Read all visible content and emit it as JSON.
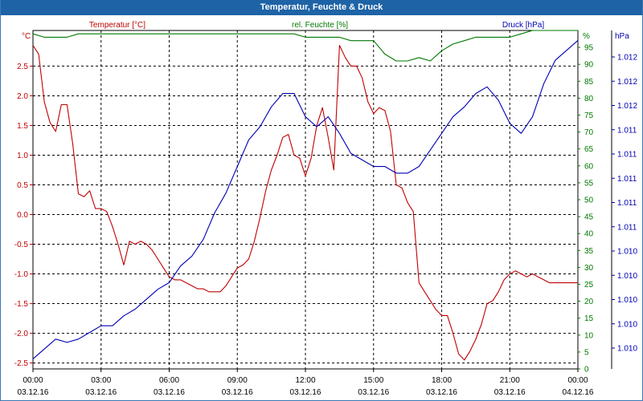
{
  "window": {
    "title": "Temperatur, Feuchte & Druck"
  },
  "colors": {
    "temperature": "#c00000",
    "humidity": "#007800",
    "pressure": "#0000b4",
    "grid": "#000000",
    "titlebar": "#1e63a6"
  },
  "chart_data": {
    "type": "line",
    "title": "Temperatur, Feuchte & Druck",
    "grid": true,
    "legend": "top",
    "x_labels": [
      {
        "time": "00:00",
        "date": "03.12.16",
        "hour": 0
      },
      {
        "time": "03:00",
        "date": "03.12.16",
        "hour": 3
      },
      {
        "time": "06:00",
        "date": "03.12.16",
        "hour": 6
      },
      {
        "time": "09:00",
        "date": "03.12.16",
        "hour": 9
      },
      {
        "time": "12:00",
        "date": "03.12.16",
        "hour": 12
      },
      {
        "time": "15:00",
        "date": "03.12.16",
        "hour": 15
      },
      {
        "time": "18:00",
        "date": "03.12.16",
        "hour": 18
      },
      {
        "time": "21:00",
        "date": "03.12.16",
        "hour": 21
      },
      {
        "time": "00:00",
        "date": "04.12.16",
        "hour": 24
      }
    ],
    "axes": {
      "temperature": {
        "label": "Temperatur [°C]",
        "unit": "°C",
        "ylim": [
          -2.6,
          3.1
        ],
        "ticks": [
          "2.5",
          "2.0",
          "1.5",
          "1.0",
          "0.5",
          "0.0",
          "-0.5",
          "-1.0",
          "-1.5",
          "-2.0",
          "-2.5"
        ]
      },
      "humidity": {
        "label": "rel. Feuchte [%]",
        "unit": "%",
        "ylim": [
          0,
          100
        ],
        "ticks": [
          "95",
          "90",
          "85",
          "80",
          "75",
          "70",
          "65",
          "60",
          "55",
          "50",
          "45",
          "40",
          "35",
          "30",
          "25",
          "20",
          "15",
          "10",
          "5",
          "0"
        ]
      },
      "pressure": {
        "label": "Druck [hPa]",
        "unit": "hPa",
        "ticks": [
          "1.012",
          "1.012",
          "1.012",
          "1.011",
          "1.011",
          "1.011",
          "1.011",
          "1.011",
          "1.010",
          "1.010",
          "1.010",
          "1.010",
          "1.010"
        ]
      }
    },
    "series": [
      {
        "name": "Temperatur [°C]",
        "axis": "temperature",
        "x": [
          0.0,
          0.25,
          0.5,
          0.75,
          1.0,
          1.25,
          1.5,
          1.75,
          2.0,
          2.25,
          2.5,
          2.75,
          3.0,
          3.25,
          3.5,
          3.75,
          4.0,
          4.25,
          4.5,
          4.75,
          5.0,
          5.25,
          5.5,
          5.75,
          6.0,
          6.25,
          6.5,
          6.75,
          7.0,
          7.25,
          7.5,
          7.75,
          8.0,
          8.25,
          8.5,
          8.75,
          9.0,
          9.25,
          9.5,
          9.75,
          10.0,
          10.25,
          10.5,
          10.75,
          11.0,
          11.25,
          11.5,
          11.75,
          12.0,
          12.25,
          12.5,
          12.75,
          13.0,
          13.25,
          13.5,
          13.75,
          14.0,
          14.25,
          14.5,
          14.75,
          15.0,
          15.25,
          15.5,
          15.75,
          16.0,
          16.25,
          16.5,
          16.75,
          17.0,
          17.25,
          17.5,
          17.75,
          18.0,
          18.25,
          18.5,
          18.75,
          19.0,
          19.25,
          19.5,
          19.75,
          20.0,
          20.25,
          20.5,
          20.75,
          21.0,
          21.25,
          21.5,
          21.75,
          22.0,
          22.25,
          22.5,
          22.75,
          23.0,
          23.25,
          23.5,
          23.75,
          24.0
        ],
        "values": [
          2.85,
          2.7,
          1.9,
          1.55,
          1.4,
          1.85,
          1.85,
          1.2,
          0.35,
          0.3,
          0.4,
          0.1,
          0.1,
          0.05,
          -0.2,
          -0.5,
          -0.85,
          -0.45,
          -0.5,
          -0.45,
          -0.5,
          -0.6,
          -0.75,
          -0.9,
          -1.05,
          -1.1,
          -1.1,
          -1.15,
          -1.2,
          -1.25,
          -1.25,
          -1.3,
          -1.3,
          -1.3,
          -1.2,
          -1.05,
          -0.9,
          -0.85,
          -0.75,
          -0.45,
          -0.05,
          0.4,
          0.75,
          1.0,
          1.3,
          1.35,
          1.0,
          0.95,
          0.65,
          0.95,
          1.5,
          1.8,
          1.3,
          0.75,
          2.85,
          2.65,
          2.5,
          2.5,
          2.3,
          1.9,
          1.7,
          1.8,
          1.75,
          1.4,
          0.5,
          0.45,
          0.2,
          0.05,
          -1.15,
          -1.3,
          -1.45,
          -1.6,
          -1.7,
          -1.7,
          -2.0,
          -2.35,
          -2.45,
          -2.3,
          -2.1,
          -1.85,
          -1.5,
          -1.45,
          -1.3,
          -1.1,
          -1.0,
          -0.95,
          -1.0,
          -1.05,
          -1.0,
          -1.05,
          -1.1,
          -1.15,
          -1.15,
          -1.15,
          -1.15,
          -1.15,
          -1.15
        ]
      },
      {
        "name": "rel. Feuchte [%]",
        "axis": "humidity",
        "x": [
          0.0,
          0.5,
          1.0,
          1.5,
          2.0,
          2.5,
          3.0,
          3.5,
          4.0,
          4.5,
          5.0,
          5.5,
          6.0,
          6.5,
          7.0,
          7.5,
          8.0,
          8.5,
          9.0,
          9.5,
          10.0,
          10.5,
          11.0,
          11.5,
          12.0,
          12.5,
          13.0,
          13.5,
          14.0,
          14.5,
          15.0,
          15.5,
          16.0,
          16.5,
          17.0,
          17.5,
          18.0,
          18.5,
          19.0,
          19.5,
          20.0,
          20.5,
          21.0,
          21.5,
          22.0,
          22.5,
          23.0,
          23.5,
          24.0
        ],
        "values": [
          99,
          98,
          98,
          98,
          99,
          99,
          99,
          99,
          99,
          99,
          99,
          99,
          99,
          99,
          99,
          99,
          99,
          99,
          99,
          99,
          99,
          99,
          99,
          99,
          98,
          98,
          98,
          98,
          97,
          97,
          97,
          93,
          91,
          91,
          92,
          91,
          94,
          96,
          97,
          98,
          98,
          98,
          98,
          99,
          100,
          100,
          100,
          100,
          100
        ]
      },
      {
        "name": "Druck [hPa]",
        "axis": "pressure",
        "x": [
          0.0,
          0.5,
          1.0,
          1.5,
          2.0,
          2.5,
          3.0,
          3.5,
          4.0,
          4.5,
          5.0,
          5.5,
          6.0,
          6.5,
          7.0,
          7.5,
          8.0,
          8.5,
          9.0,
          9.5,
          10.0,
          10.5,
          11.0,
          11.5,
          12.0,
          12.5,
          13.0,
          13.5,
          14.0,
          14.5,
          15.0,
          15.5,
          16.0,
          16.5,
          17.0,
          17.5,
          18.0,
          18.5,
          19.0,
          19.5,
          20.0,
          20.5,
          21.0,
          21.5,
          22.0,
          22.5,
          23.0,
          23.5,
          24.0
        ],
        "values": [
          1009.62,
          1009.65,
          1009.68,
          1009.67,
          1009.68,
          1009.7,
          1009.72,
          1009.72,
          1009.75,
          1009.77,
          1009.8,
          1009.83,
          1009.85,
          1009.9,
          1009.93,
          1009.98,
          1010.06,
          1010.12,
          1010.2,
          1010.28,
          1010.32,
          1010.38,
          1010.42,
          1010.42,
          1010.35,
          1010.32,
          1010.35,
          1010.3,
          1010.24,
          1010.22,
          1010.2,
          1010.2,
          1010.18,
          1010.18,
          1010.2,
          1010.25,
          1010.3,
          1010.35,
          1010.38,
          1010.42,
          1010.44,
          1010.4,
          1010.33,
          1010.3,
          1010.35,
          1010.45,
          1010.52,
          1010.55,
          1010.58
        ]
      }
    ]
  }
}
